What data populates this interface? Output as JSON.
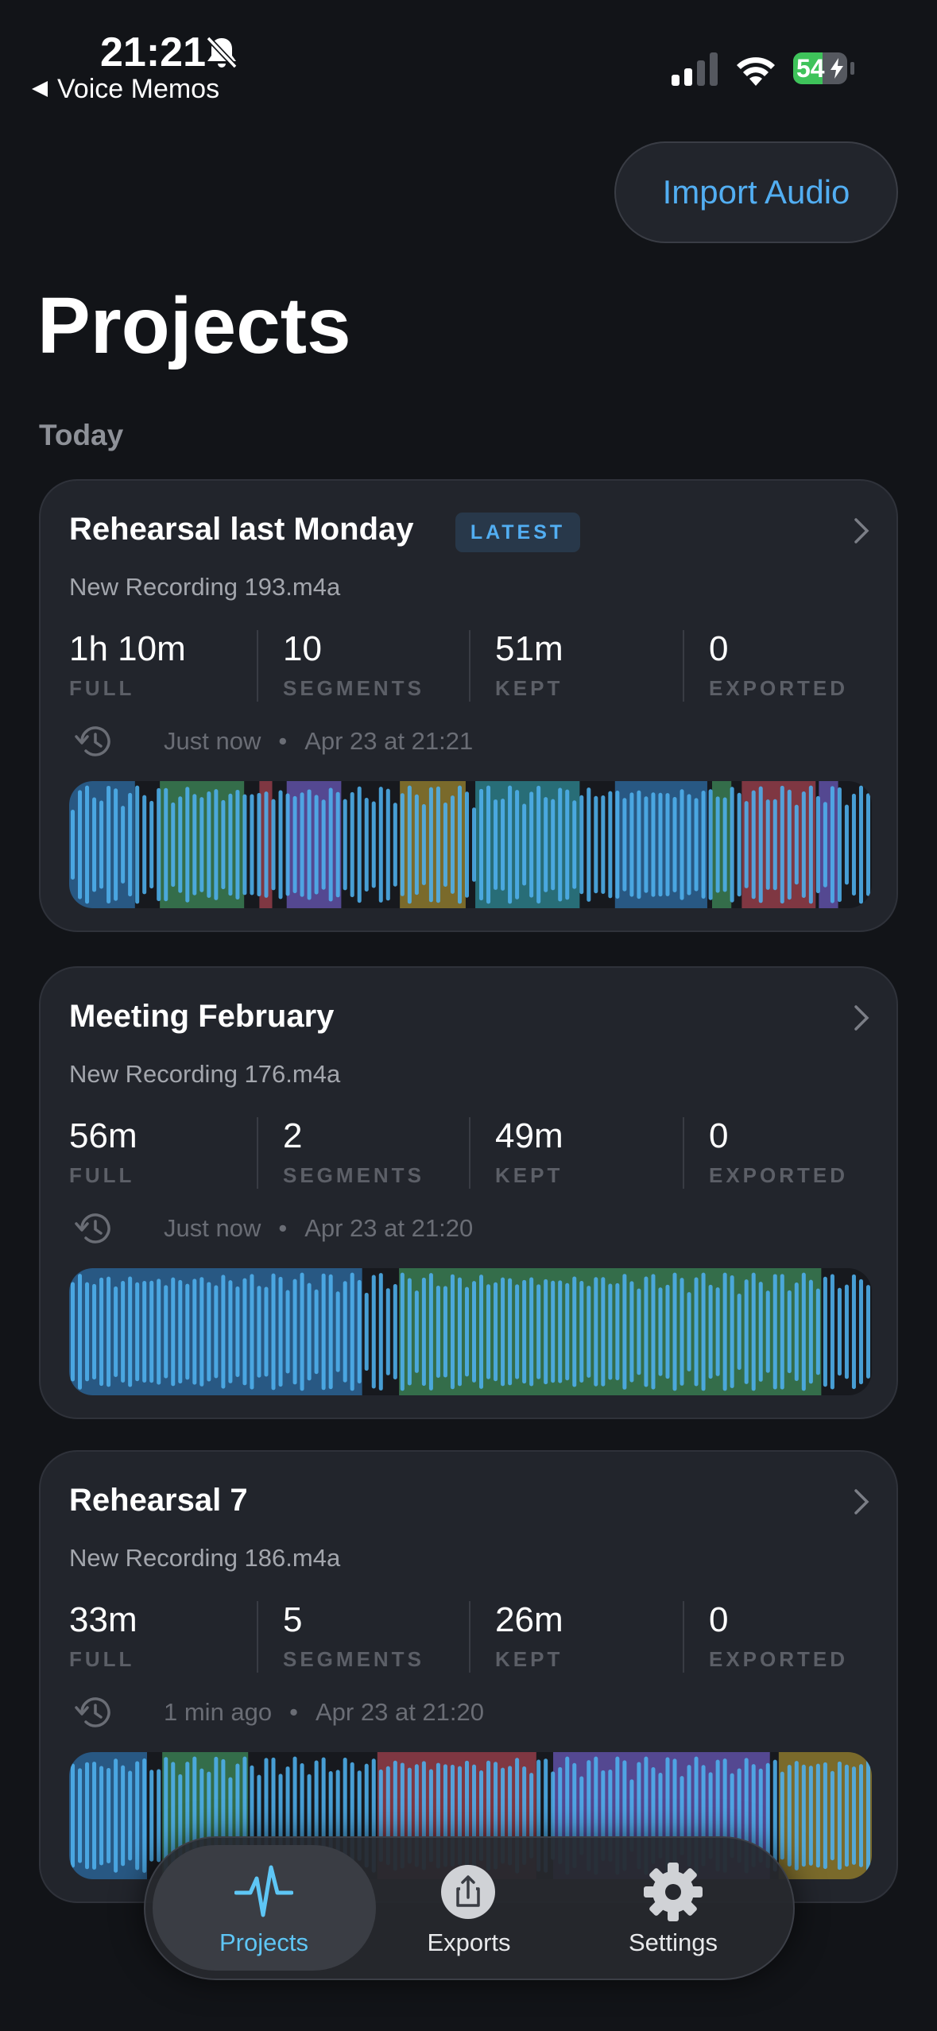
{
  "status_bar": {
    "time": "21:21",
    "back": "Voice Memos",
    "battery": "54"
  },
  "header": {
    "import_button": "Import Audio",
    "title": "Projects",
    "section": "Today"
  },
  "projects": [
    {
      "title": "Rehearsal last Monday",
      "badge": "LATEST",
      "file": "New Recording 193.m4a",
      "stats": [
        {
          "value": "1h 10m",
          "label": "FULL"
        },
        {
          "value": "10",
          "label": "SEGMENTS"
        },
        {
          "value": "51m",
          "label": "KEPT"
        },
        {
          "value": "0",
          "label": "EXPORTED"
        }
      ],
      "time": "Just now",
      "date": "Apr 23 at 21:21"
    },
    {
      "title": "Meeting February",
      "file": "New Recording 176.m4a",
      "stats": [
        {
          "value": "56m",
          "label": "FULL"
        },
        {
          "value": "2",
          "label": "SEGMENTS"
        },
        {
          "value": "49m",
          "label": "KEPT"
        },
        {
          "value": "0",
          "label": "EXPORTED"
        }
      ],
      "time": "Just now",
      "date": "Apr 23 at 21:20"
    },
    {
      "title": "Rehearsal 7",
      "file": "New Recording 186.m4a",
      "stats": [
        {
          "value": "33m",
          "label": "FULL"
        },
        {
          "value": "5",
          "label": "SEGMENTS"
        },
        {
          "value": "26m",
          "label": "KEPT"
        },
        {
          "value": "0",
          "label": "EXPORTED"
        }
      ],
      "time": "1 min ago",
      "date": "Apr 23 at 21:20"
    }
  ],
  "tab_bar": {
    "tabs": [
      "Projects",
      "Exports",
      "Settings"
    ]
  }
}
